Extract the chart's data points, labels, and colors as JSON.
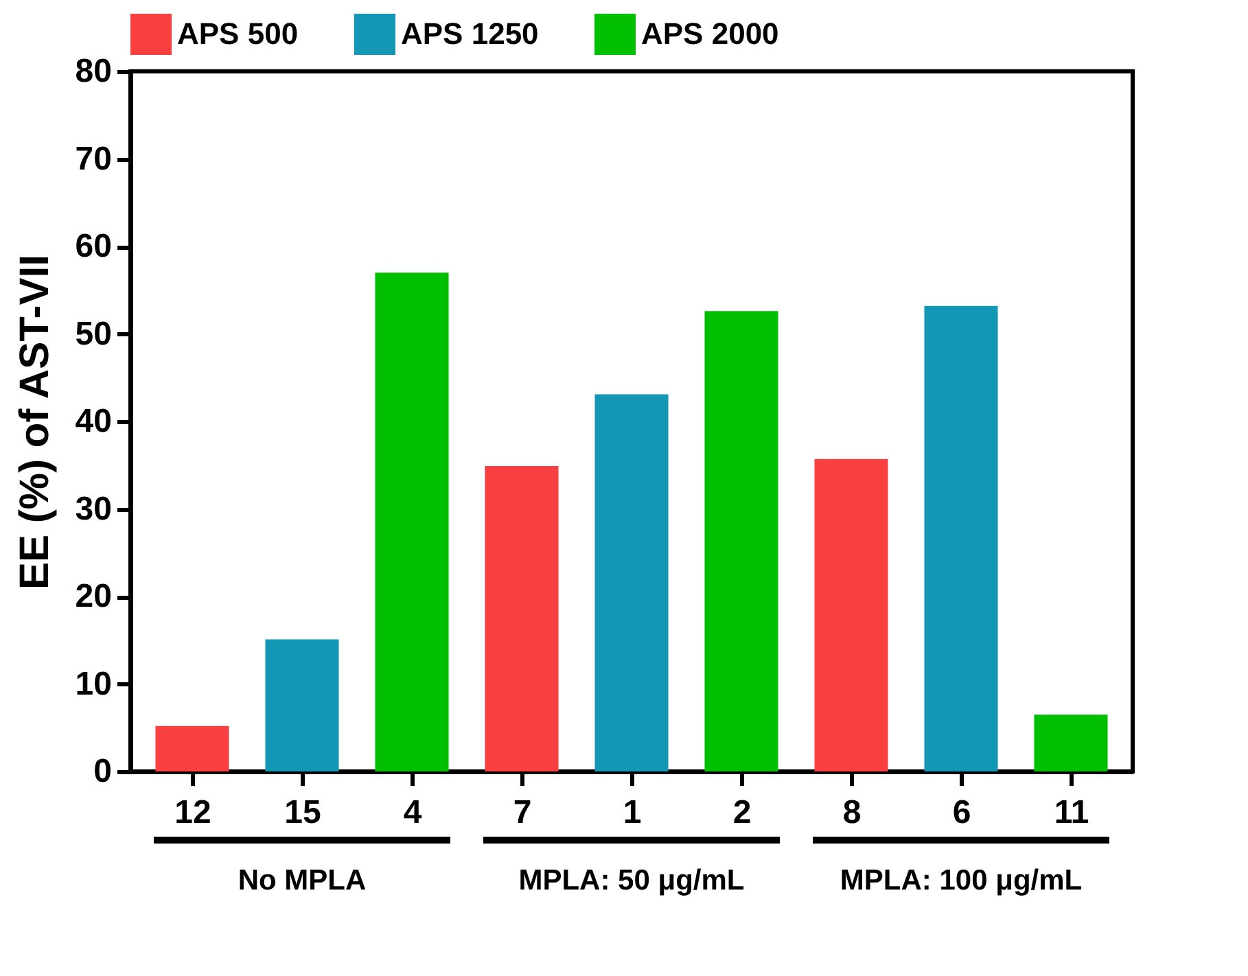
{
  "chart_data": {
    "type": "bar",
    "ylabel": "EE (%) of AST-VII",
    "categories": [
      "12",
      "15",
      "4",
      "7",
      "1",
      "2",
      "8",
      "6",
      "11"
    ],
    "series": [
      {
        "name": "APS 500",
        "color": "#f84040",
        "values": [
          5.2,
          null,
          null,
          34.9,
          null,
          null,
          35.7,
          null,
          null
        ]
      },
      {
        "name": "APS 1250",
        "color": "#1497b5",
        "values": [
          null,
          15.1,
          null,
          null,
          43.1,
          null,
          null,
          53.2,
          null
        ]
      },
      {
        "name": "APS 2000",
        "color": "#00bf00",
        "values": [
          null,
          null,
          57.0,
          null,
          null,
          52.6,
          null,
          null,
          6.5
        ]
      }
    ],
    "ylim": [
      0,
      80
    ],
    "yticks": [
      0,
      10,
      20,
      30,
      40,
      50,
      60,
      70,
      80
    ],
    "grid": false,
    "legend": "top",
    "annotations": [
      "No MPLA",
      "MPLA: 50 μg/mL",
      "MPLA: 100 μg/mL"
    ]
  }
}
